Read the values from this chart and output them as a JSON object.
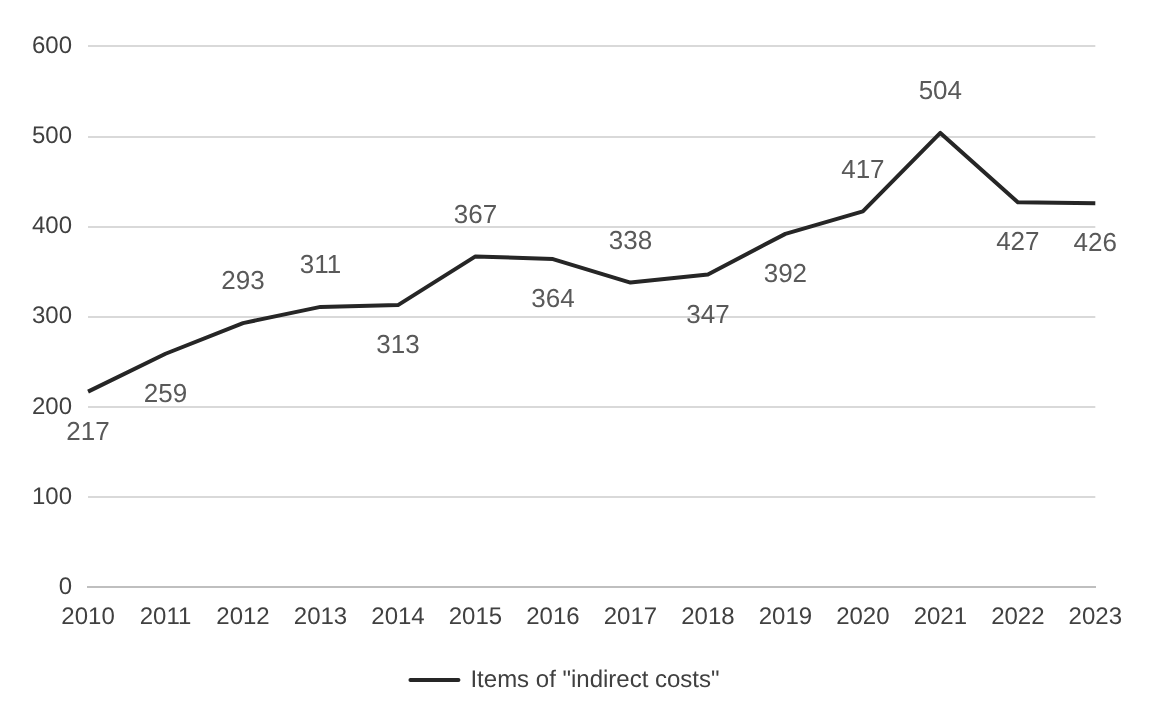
{
  "chart_data": {
    "type": "line",
    "categories": [
      "2010",
      "2011",
      "2012",
      "2013",
      "2014",
      "2015",
      "2016",
      "2017",
      "2018",
      "2019",
      "2020",
      "2021",
      "2022",
      "2023"
    ],
    "series": [
      {
        "name": "Items of \"indirect costs\"",
        "color": "#262626",
        "values": [
          217,
          259,
          293,
          311,
          313,
          367,
          364,
          338,
          347,
          392,
          417,
          504,
          427,
          426
        ]
      }
    ],
    "ylim": [
      0,
      600
    ],
    "yticks": [
      0,
      100,
      200,
      300,
      400,
      500,
      600
    ],
    "grid": "y",
    "legend": "bottom",
    "data_labels": true,
    "marker": "none"
  }
}
